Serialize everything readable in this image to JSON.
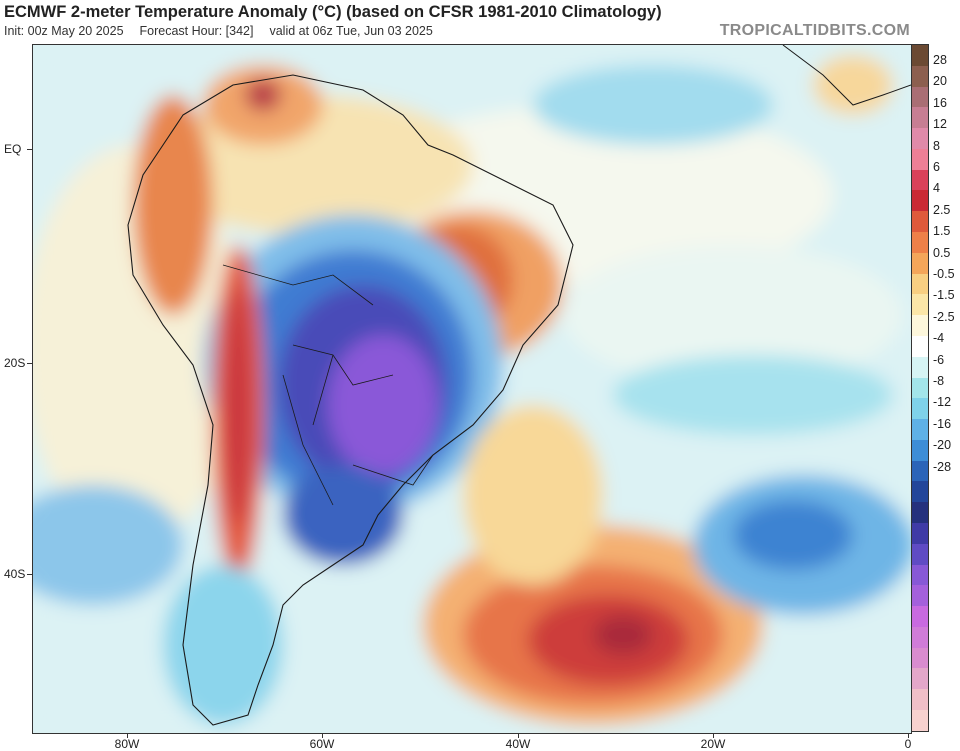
{
  "title": "ECMWF 2-meter Temperature Anomaly (°C) (based on CFSR 1981-2010 Climatology)",
  "subtitle": {
    "init": "Init: 00z May 20 2025",
    "forecast_hour": "Forecast Hour: [342]",
    "valid": "valid at 06z Tue, Jun 03 2025"
  },
  "watermark": "TROPICALTIDBITS.COM",
  "map": {
    "region": "South America and South Atlantic",
    "lat_labels": [
      "EQ",
      "20S",
      "40S"
    ],
    "lon_labels": [
      "80W",
      "60W",
      "40W",
      "20W",
      "0"
    ]
  },
  "colorbar": {
    "labels": [
      "28",
      "20",
      "16",
      "12",
      "8",
      "6",
      "4",
      "2.5",
      "1.5",
      "0.5",
      "-0.5",
      "-1.5",
      "-2.5",
      "-4",
      "-6",
      "-8",
      "-12",
      "-16",
      "-20",
      "-28"
    ],
    "colors": [
      "#6b4a33",
      "#8c5f4f",
      "#a96e74",
      "#c77e93",
      "#e08aa9",
      "#ee7f96",
      "#d9415a",
      "#c92a34",
      "#df5a3b",
      "#ee8048",
      "#f4a65a",
      "#f8cf82",
      "#fbe6a8",
      "#fdf7dc",
      "#ffffff",
      "#d6f4f4",
      "#a3e5ea",
      "#7fd2ea",
      "#5fb1e6",
      "#3d8dd6",
      "#2b64b8",
      "#23469a",
      "#25317d",
      "#3f3ba6",
      "#5f4bc4",
      "#8758d6",
      "#a460dc",
      "#c86ae0",
      "#d07cd8",
      "#d98ccf",
      "#e3a7c9",
      "#f0bfc8",
      "#f7d2cf"
    ]
  }
}
